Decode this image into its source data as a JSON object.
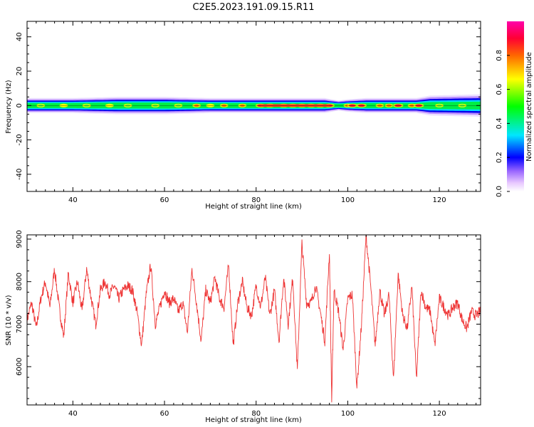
{
  "figure": {
    "title": "C2E5.2023.191.09.15.R11"
  },
  "chart_data": [
    {
      "type": "heatmap",
      "xlabel": "Height of straight line (km)",
      "ylabel": "Frequency (Hz)",
      "xlim": [
        30,
        129
      ],
      "ylim": [
        -50,
        49
      ],
      "xticks": [
        40,
        60,
        80,
        100,
        120
      ],
      "yticks": [
        -40,
        -20,
        0,
        20,
        40
      ],
      "grid": false,
      "colorbar": {
        "label": "Normalized spectral amplitude",
        "range": [
          0,
          1
        ],
        "ticks": [
          "0.0",
          "0.2",
          "0.4",
          "0.6",
          "0.8"
        ],
        "colormap": "rainbow (magenta-blue-cyan-green-yellow-red-magenta)",
        "stops": [
          "#ffffff",
          "#e8c8ff",
          "#9966ff",
          "#0000ff",
          "#00e6ff",
          "#00ff00",
          "#ffff00",
          "#ff6600",
          "#ff0033",
          "#ff00aa"
        ]
      },
      "band": {
        "center_hz": 0,
        "halfwidth_hz": [
          [
            30,
            3
          ],
          [
            40,
            3
          ],
          [
            50,
            3.5
          ],
          [
            60,
            3.5
          ],
          [
            70,
            3
          ],
          [
            80,
            3
          ],
          [
            90,
            3
          ],
          [
            95,
            3
          ],
          [
            98,
            2
          ],
          [
            100,
            2.5
          ],
          [
            104,
            3
          ],
          [
            110,
            3
          ],
          [
            115,
            3
          ],
          [
            118,
            4
          ],
          [
            129,
            4.5
          ]
        ],
        "peaks_km": [
          [
            33,
            0.7
          ],
          [
            38,
            0.8
          ],
          [
            43,
            0.7
          ],
          [
            48,
            0.8
          ],
          [
            52,
            0.6
          ],
          [
            58,
            0.7
          ],
          [
            63,
            0.7
          ],
          [
            67,
            0.85
          ],
          [
            70,
            0.8
          ],
          [
            73,
            0.9
          ],
          [
            77,
            0.85
          ],
          [
            81,
            0.95
          ],
          [
            83,
            1.0
          ],
          [
            86,
            1.0
          ],
          [
            88,
            1.0
          ],
          [
            90,
            1.0
          ],
          [
            92,
            1.0
          ],
          [
            94,
            1.0
          ],
          [
            96,
            0.95
          ],
          [
            100,
            0.9
          ],
          [
            101,
            0.95
          ],
          [
            103,
            0.95
          ],
          [
            107,
            0.85
          ],
          [
            109,
            0.85
          ],
          [
            111,
            0.95
          ],
          [
            114,
            0.85
          ],
          [
            115.5,
            0.95
          ],
          [
            120,
            0.6
          ],
          [
            125,
            0.55
          ]
        ]
      }
    },
    {
      "type": "line",
      "xlabel": "Height of straight line (km)",
      "ylabel": "SNR (10 * v/v)",
      "xlim": [
        30,
        129
      ],
      "ylim": [
        5100,
        9100
      ],
      "xticks": [
        40,
        60,
        80,
        100,
        120
      ],
      "yticks": [
        6000,
        7000,
        8000,
        9000
      ],
      "grid": false,
      "series": [
        {
          "color": "#ee3333",
          "x": [
            30,
            31,
            32,
            33,
            34,
            35,
            36,
            37,
            38,
            39,
            40,
            41,
            42,
            43,
            44,
            45,
            46,
            47,
            48,
            49,
            50,
            51,
            52,
            53,
            54,
            55,
            56,
            57,
            58,
            59,
            60,
            61,
            62,
            63,
            64,
            65,
            66,
            67,
            68,
            69,
            70,
            71,
            72,
            73,
            74,
            75,
            76,
            77,
            78,
            79,
            80,
            81,
            82,
            83,
            84,
            85,
            86,
            87,
            88,
            89,
            90,
            91,
            92,
            93,
            94,
            95,
            96,
            96.5,
            97,
            98,
            99,
            100,
            101,
            102,
            103,
            104,
            105,
            106,
            107,
            108,
            109,
            110,
            111,
            112,
            113,
            114,
            115,
            116,
            117,
            118,
            119,
            120,
            121,
            122,
            123,
            124,
            125,
            126,
            127,
            128,
            129
          ],
          "y": [
            7100,
            7500,
            6900,
            7600,
            8000,
            7400,
            8300,
            7400,
            6700,
            8200,
            7500,
            8000,
            7300,
            8300,
            7600,
            7000,
            7800,
            8000,
            7700,
            7900,
            7600,
            7800,
            7900,
            7800,
            7300,
            6500,
            7700,
            8400,
            7000,
            7400,
            7800,
            7500,
            7600,
            7300,
            7500,
            6800,
            8300,
            7500,
            6600,
            7800,
            7500,
            8100,
            7600,
            7400,
            8400,
            6500,
            7500,
            8000,
            7400,
            7200,
            7900,
            7400,
            8100,
            7200,
            7800,
            6600,
            8100,
            7000,
            8100,
            5900,
            8900,
            7500,
            7500,
            7900,
            7300,
            6600,
            8700,
            5200,
            7800,
            7300,
            6400,
            7600,
            7700,
            5500,
            7000,
            9100,
            7900,
            6500,
            7800,
            7200,
            7700,
            5700,
            8200,
            7200,
            6900,
            7900,
            5700,
            7800,
            7400,
            7300,
            6500,
            7600,
            7400,
            7200,
            7400,
            7500,
            7100,
            6900,
            7300,
            7200,
            7300
          ]
        }
      ]
    }
  ]
}
